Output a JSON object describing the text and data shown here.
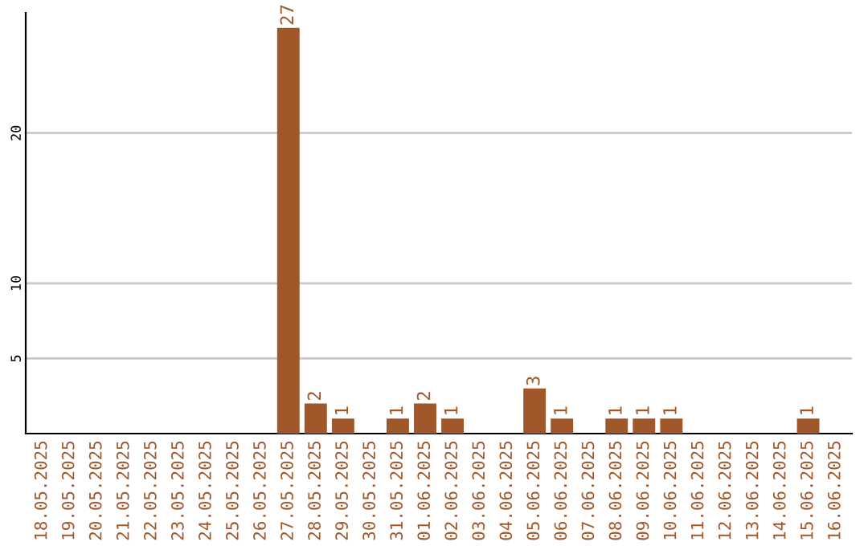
{
  "chart_data": {
    "type": "bar",
    "categories": [
      "18.05.2025",
      "19.05.2025",
      "20.05.2025",
      "21.05.2025",
      "22.05.2025",
      "23.05.2025",
      "24.05.2025",
      "25.05.2025",
      "26.05.2025",
      "27.05.2025",
      "28.05.2025",
      "29.05.2025",
      "30.05.2025",
      "31.05.2025",
      "01.06.2025",
      "02.06.2025",
      "03.06.2025",
      "04.06.2025",
      "05.06.2025",
      "06.06.2025",
      "07.06.2025",
      "08.06.2025",
      "09.06.2025",
      "10.06.2025",
      "11.06.2025",
      "12.06.2025",
      "13.06.2025",
      "14.06.2025",
      "15.06.2025",
      "16.06.2025"
    ],
    "values": [
      null,
      null,
      null,
      null,
      null,
      null,
      null,
      null,
      null,
      27,
      2,
      1,
      null,
      1,
      2,
      1,
      null,
      null,
      3,
      1,
      null,
      1,
      1,
      1,
      null,
      null,
      null,
      null,
      1,
      null
    ],
    "color": "#a0572a",
    "ylim": [
      0,
      28
    ],
    "yticks": [
      5,
      10,
      20
    ],
    "grid": "y",
    "data_labels": true
  }
}
